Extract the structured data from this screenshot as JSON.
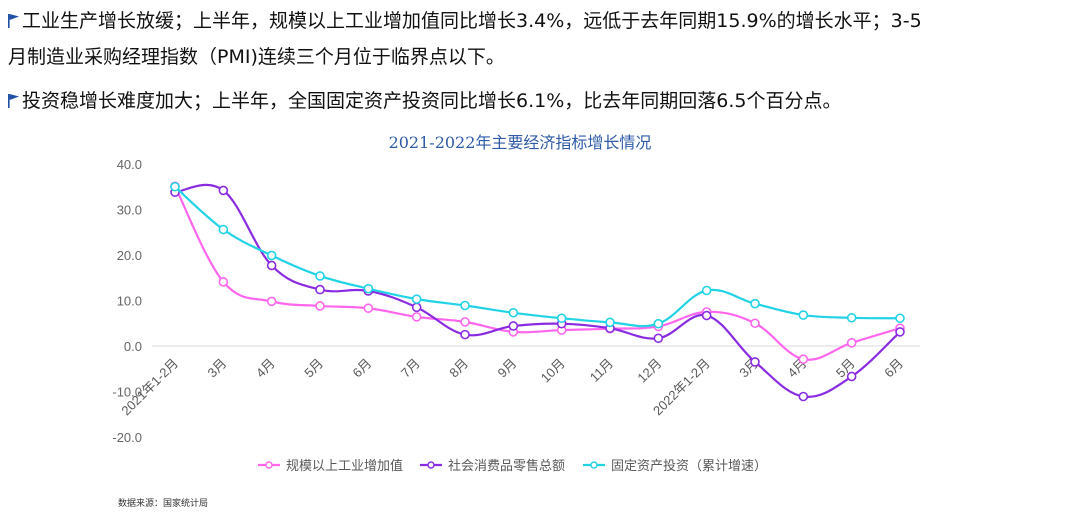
{
  "bullets": {
    "line1": "工业生产增长放缓；上半年，规模以上工业增加值同比增长3.4%，远低于去年同期15.9%的增长水平；3-5",
    "line2": "月制造业采购经理指数（PMI)连续三个月位于临界点以下。",
    "line3": "投资稳增长难度加大；上半年，全国固定资产投资同比增长6.1%，比去年同期回落6.5个百分点。",
    "flag_icon": "flag-icon"
  },
  "source": "数据来源：国家统计局",
  "chart_data": {
    "type": "line",
    "title": "2021-2022年主要经济指标增长情况",
    "categories": [
      "2021年1-2月",
      "3月",
      "4月",
      "5月",
      "6月",
      "7月",
      "8月",
      "9月",
      "10月",
      "11月",
      "12月",
      "2022年1-2月",
      "3月",
      "4月",
      "5月",
      "6月"
    ],
    "y_ticks": [
      "40.0",
      "30.0",
      "20.0",
      "10.0",
      "0.0",
      "-10.0",
      "-20.0"
    ],
    "ylim": [
      -20,
      40
    ],
    "legend_position": "bottom",
    "grid": false,
    "series": [
      {
        "name": "规模以上工业增加值",
        "color": "#ff66ee",
        "values": [
          35.1,
          14.1,
          9.8,
          8.8,
          8.3,
          6.4,
          5.3,
          3.1,
          3.5,
          3.8,
          4.3,
          7.5,
          5.0,
          -2.9,
          0.7,
          3.9
        ]
      },
      {
        "name": "社会消费品零售总额",
        "color": "#8a2be2",
        "values": [
          33.8,
          34.2,
          17.7,
          12.4,
          12.1,
          8.5,
          2.5,
          4.4,
          4.9,
          3.9,
          1.7,
          6.7,
          -3.5,
          -11.1,
          -6.7,
          3.1
        ]
      },
      {
        "name": "固定资产投资（累计增速）",
        "color": "#22d3e6",
        "values": [
          35.0,
          25.6,
          19.9,
          15.4,
          12.6,
          10.3,
          8.9,
          7.3,
          6.1,
          5.2,
          4.9,
          12.2,
          9.3,
          6.8,
          6.2,
          6.1
        ]
      }
    ]
  }
}
